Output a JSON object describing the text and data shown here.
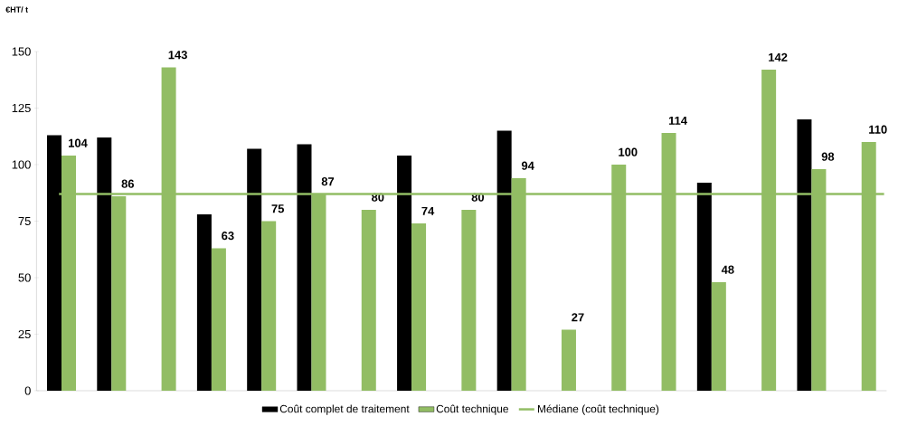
{
  "chart_data": {
    "type": "bar",
    "ylabel": "€HT/ t",
    "categories": [
      null,
      null,
      null,
      null,
      null,
      null,
      null,
      null,
      null,
      null,
      null,
      null,
      null,
      null,
      null,
      null,
      null
    ],
    "ylim": [
      0,
      150
    ],
    "yticks": [
      0,
      25,
      50,
      75,
      100,
      125,
      150
    ],
    "legend": "bottom",
    "series": [
      {
        "name": "Coût complet de traitement",
        "color": "#000000",
        "values": [
          113,
          112,
          null,
          78,
          107,
          109,
          null,
          104,
          null,
          115,
          null,
          null,
          null,
          92,
          null,
          120,
          null
        ]
      },
      {
        "name": "Coût technique",
        "color": "#92bd64",
        "values": [
          104,
          86,
          143,
          63,
          75,
          87,
          80,
          74,
          80,
          94,
          27,
          100,
          114,
          48,
          142,
          98,
          110
        ],
        "value_labels": [
          "104",
          "86",
          "143",
          "63",
          "75",
          "87",
          "80",
          "74",
          "80",
          "94",
          "27",
          "100",
          "114",
          "48",
          "142",
          "98",
          "110"
        ]
      }
    ],
    "ref_lines": [
      {
        "axis": "y",
        "value": 87,
        "label": "Médiane (coût technique)",
        "color": "#92bd64"
      }
    ]
  }
}
